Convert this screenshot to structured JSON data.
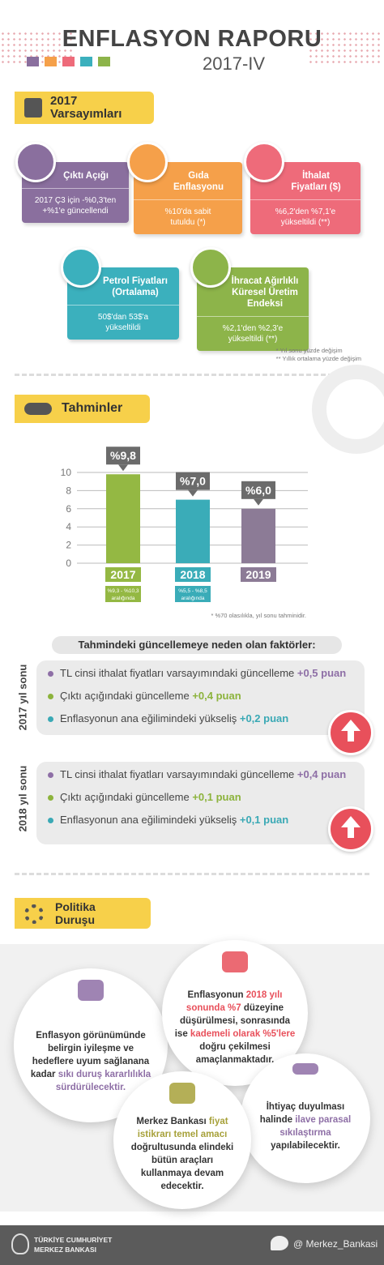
{
  "header": {
    "title": "ENFLASYON RAPORU",
    "subtitle": "2017-IV"
  },
  "assumptions": {
    "title": [
      "2017",
      "Varsayımları"
    ],
    "cards": [
      {
        "title": [
          "Çıktı Açığı"
        ],
        "text": [
          "2017 Ç3 için -%0,3'ten",
          "+%1'e güncellendi"
        ],
        "color": "#8a6f9e"
      },
      {
        "title": [
          "Gıda",
          "Enflasyonu"
        ],
        "text": [
          "%10'da sabit",
          "tutuldu (*)"
        ],
        "color": "#f5a04a"
      },
      {
        "title": [
          "İthalat",
          "Fiyatları ($)"
        ],
        "text": [
          "%6,2'den %7,1'e",
          "yükseltildi (**)"
        ],
        "color": "#ee6b7a"
      },
      {
        "title": [
          "Petrol Fiyatları",
          "(Ortalama)"
        ],
        "text": [
          "50$'dan 53$'a",
          "yükseltildi"
        ],
        "color": "#3bb0bd"
      },
      {
        "title": [
          "İhracat Ağırlıklı",
          "Küresel Üretim Endeksi"
        ],
        "text": [
          "%2,1'den %2,3'e",
          "yükseltildi (**)"
        ],
        "color": "#8db44a"
      }
    ],
    "notes": [
      "* Yıl sonu yüzde değişim",
      "** Yıllık ortalama yüzde değişim"
    ]
  },
  "forecasts": {
    "title": "Tahminler",
    "range_labels": [
      [
        "%9,3 - %10,3",
        "aralığında"
      ],
      [
        "%5,5 - %8,5",
        "aralığında"
      ]
    ],
    "note": "* %70 olasılıkla, yıl sonu tahminidir."
  },
  "chart_data": {
    "type": "bar",
    "categories": [
      "2017",
      "2018",
      "2019"
    ],
    "values": [
      9.8,
      7.0,
      6.0
    ],
    "value_labels": [
      "%9,8",
      "%7,0",
      "%6,0"
    ],
    "colors": [
      "#94b843",
      "#3aacb8",
      "#8c7b96"
    ],
    "ylim": [
      0,
      10
    ],
    "yticks": [
      0,
      2,
      4,
      6,
      8,
      10
    ],
    "grid": true
  },
  "factors": {
    "title": "Tahmindeki güncellemeye neden olan faktörler:",
    "groups": [
      {
        "label": "2017 yıl sonu",
        "items": [
          {
            "text": "TL cinsi ithalat fiyatları varsayımındaki güncelleme",
            "amount": "+0,5 puan",
            "color": "#8e6fa6"
          },
          {
            "text": "Çıktı açığındaki güncelleme",
            "amount": "+0,4 puan",
            "color": "#8cb33c"
          },
          {
            "text": "Enflasyonun ana eğilimindeki yükseliş",
            "amount": "+0,2 puan",
            "color": "#3aa9b5"
          }
        ]
      },
      {
        "label": "2018 yıl sonu",
        "items": [
          {
            "text": "TL cinsi ithalat fiyatları varsayımındaki güncelleme",
            "amount": "+0,4 puan",
            "color": "#8e6fa6"
          },
          {
            "text": "Çıktı açığındaki güncelleme",
            "amount": "+0,1 puan",
            "color": "#8cb33c"
          },
          {
            "text": "Enflasyonun ana eğilimindeki yükseliş",
            "amount": "+0,1 puan",
            "color": "#3aa9b5"
          }
        ]
      }
    ]
  },
  "policy": {
    "title": [
      "Politika",
      "Duruşu"
    ],
    "bubbles": [
      {
        "accent": "#8e6fa6",
        "segments": [
          {
            "text": "Enflasyon görünümünde belirgin iyileşme ve hedeflere uyum sağlanana kadar ",
            "accent": false
          },
          {
            "text": "sıkı duruş kararlılıkla sürdürülecektir.",
            "accent": true
          }
        ]
      },
      {
        "accent": "#e8505b",
        "segments": [
          {
            "text": "Enflasyonun ",
            "accent": false
          },
          {
            "text": "2018 yılı sonunda %7",
            "accent": true
          },
          {
            "text": " düzeyine düşürülmesi, sonrasında ise ",
            "accent": false
          },
          {
            "text": "kademeli olarak %5'lere",
            "accent": true
          },
          {
            "text": " doğru çekilmesi amaçlanmaktadır.",
            "accent": false
          }
        ]
      },
      {
        "accent": "#8e6fa6",
        "segments": [
          {
            "text": "İhtiyaç duyulması halinde ",
            "accent": false
          },
          {
            "text": "ilave parasal sıkılaştırma",
            "accent": true
          },
          {
            "text": " yapılabilecektir.",
            "accent": false
          }
        ]
      },
      {
        "accent": "#a7a13a",
        "segments": [
          {
            "text": "Merkez Bankası ",
            "accent": false
          },
          {
            "text": "fiyat istikrarı temel amacı",
            "accent": true
          },
          {
            "text": " doğrultusunda elindeki bütün araçları kullanmaya devam edecektir.",
            "accent": false
          }
        ]
      }
    ]
  },
  "footer": {
    "bank": [
      "TÜRKİYE CUMHURİYET",
      "MERKEZ BANKASI"
    ],
    "twitter": "@ Merkez_Bankasi"
  }
}
